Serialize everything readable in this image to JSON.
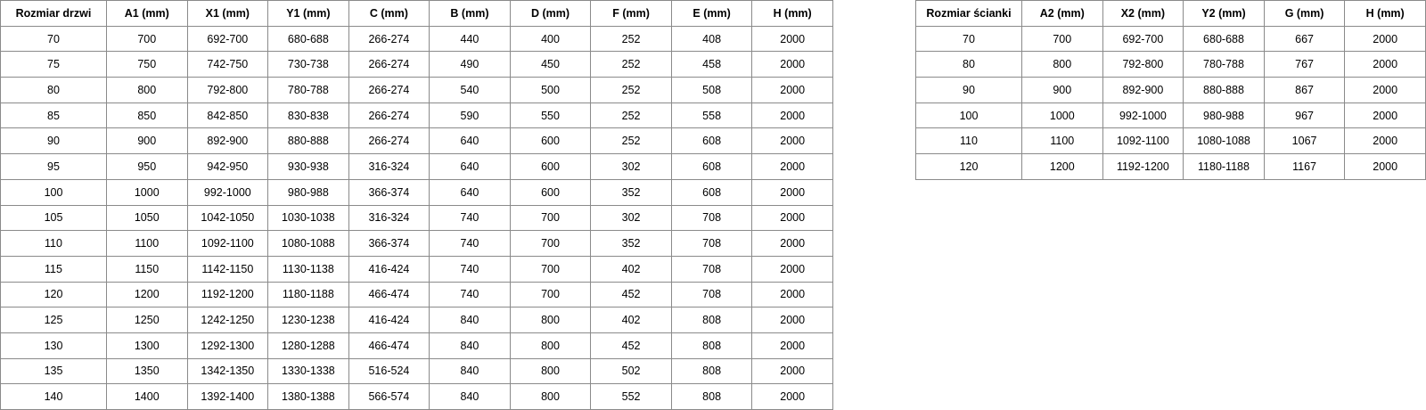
{
  "doors_table": {
    "headers": [
      "Rozmiar drzwi",
      "A1 (mm)",
      "X1 (mm)",
      "Y1 (mm)",
      "C (mm)",
      "B (mm)",
      "D (mm)",
      "F (mm)",
      "E (mm)",
      "H (mm)"
    ],
    "rows": [
      [
        "70",
        "700",
        "692-700",
        "680-688",
        "266-274",
        "440",
        "400",
        "252",
        "408",
        "2000"
      ],
      [
        "75",
        "750",
        "742-750",
        "730-738",
        "266-274",
        "490",
        "450",
        "252",
        "458",
        "2000"
      ],
      [
        "80",
        "800",
        "792-800",
        "780-788",
        "266-274",
        "540",
        "500",
        "252",
        "508",
        "2000"
      ],
      [
        "85",
        "850",
        "842-850",
        "830-838",
        "266-274",
        "590",
        "550",
        "252",
        "558",
        "2000"
      ],
      [
        "90",
        "900",
        "892-900",
        "880-888",
        "266-274",
        "640",
        "600",
        "252",
        "608",
        "2000"
      ],
      [
        "95",
        "950",
        "942-950",
        "930-938",
        "316-324",
        "640",
        "600",
        "302",
        "608",
        "2000"
      ],
      [
        "100",
        "1000",
        "992-1000",
        "980-988",
        "366-374",
        "640",
        "600",
        "352",
        "608",
        "2000"
      ],
      [
        "105",
        "1050",
        "1042-1050",
        "1030-1038",
        "316-324",
        "740",
        "700",
        "302",
        "708",
        "2000"
      ],
      [
        "110",
        "1100",
        "1092-1100",
        "1080-1088",
        "366-374",
        "740",
        "700",
        "352",
        "708",
        "2000"
      ],
      [
        "115",
        "1150",
        "1142-1150",
        "1130-1138",
        "416-424",
        "740",
        "700",
        "402",
        "708",
        "2000"
      ],
      [
        "120",
        "1200",
        "1192-1200",
        "1180-1188",
        "466-474",
        "740",
        "700",
        "452",
        "708",
        "2000"
      ],
      [
        "125",
        "1250",
        "1242-1250",
        "1230-1238",
        "416-424",
        "840",
        "800",
        "402",
        "808",
        "2000"
      ],
      [
        "130",
        "1300",
        "1292-1300",
        "1280-1288",
        "466-474",
        "840",
        "800",
        "452",
        "808",
        "2000"
      ],
      [
        "135",
        "1350",
        "1342-1350",
        "1330-1338",
        "516-524",
        "840",
        "800",
        "502",
        "808",
        "2000"
      ],
      [
        "140",
        "1400",
        "1392-1400",
        "1380-1388",
        "566-574",
        "840",
        "800",
        "552",
        "808",
        "2000"
      ]
    ]
  },
  "walls_table": {
    "headers": [
      "Rozmiar ścianki",
      "A2 (mm)",
      "X2 (mm)",
      "Y2 (mm)",
      "G (mm)",
      "H (mm)"
    ],
    "rows": [
      [
        "70",
        "700",
        "692-700",
        "680-688",
        "667",
        "2000"
      ],
      [
        "80",
        "800",
        "792-800",
        "780-788",
        "767",
        "2000"
      ],
      [
        "90",
        "900",
        "892-900",
        "880-888",
        "867",
        "2000"
      ],
      [
        "100",
        "1000",
        "992-1000",
        "980-988",
        "967",
        "2000"
      ],
      [
        "110",
        "1100",
        "1092-1100",
        "1080-1088",
        "1067",
        "2000"
      ],
      [
        "120",
        "1200",
        "1192-1200",
        "1180-1188",
        "1167",
        "2000"
      ]
    ]
  }
}
